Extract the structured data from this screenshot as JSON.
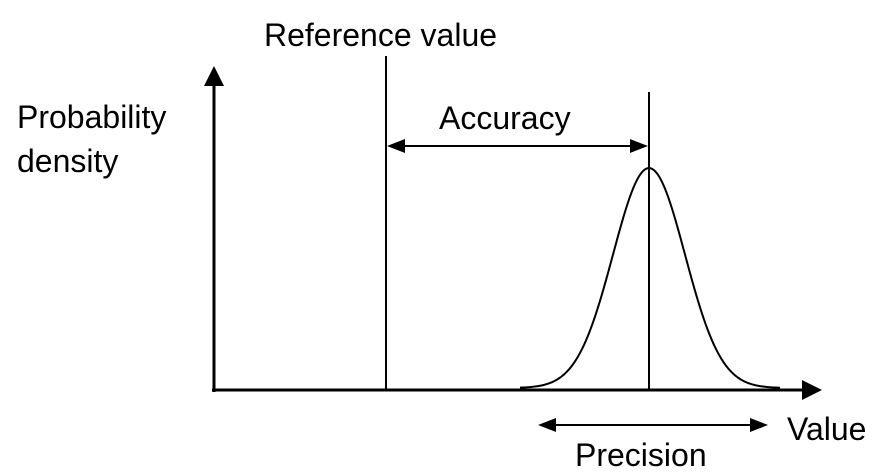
{
  "labels": {
    "reference": "Reference value",
    "y_axis_line1": "Probability",
    "y_axis_line2": "density",
    "accuracy": "Accuracy",
    "x_axis": "Value",
    "precision": "Precision"
  },
  "colors": {
    "stroke": "#000000",
    "background": "#ffffff"
  }
}
